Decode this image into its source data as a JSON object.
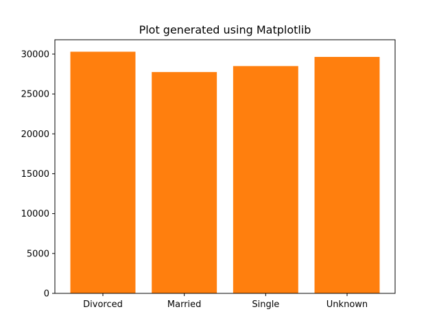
{
  "chart_data": {
    "type": "bar",
    "title": "Plot generated using Matplotlib",
    "xlabel": "",
    "ylabel": "",
    "categories": [
      "Divorced",
      "Married",
      "Single",
      "Unknown"
    ],
    "values": [
      30300,
      27750,
      28500,
      29650
    ],
    "ylim": [
      0,
      31800
    ],
    "yticks": [
      0,
      5000,
      10000,
      15000,
      20000,
      25000,
      30000
    ],
    "ytick_labels": [
      "0",
      "5000",
      "10000",
      "15000",
      "20000",
      "25000",
      "30000"
    ],
    "bar_color": "#ff7f0e",
    "grid": false,
    "legend": "none"
  }
}
